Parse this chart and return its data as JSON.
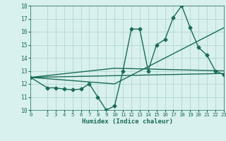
{
  "xlabel": "Humidex (Indice chaleur)",
  "bg_color": "#d8f0ee",
  "grid_color": "#b0d8d4",
  "line_color": "#1a6b5a",
  "xlim": [
    0,
    23
  ],
  "ylim": [
    10,
    18
  ],
  "xticks": [
    0,
    2,
    3,
    4,
    5,
    6,
    7,
    8,
    9,
    10,
    11,
    12,
    13,
    14,
    15,
    16,
    17,
    18,
    19,
    20,
    21,
    22,
    23
  ],
  "yticks": [
    10,
    11,
    12,
    13,
    14,
    15,
    16,
    17,
    18
  ],
  "series": [
    {
      "x": [
        0,
        2,
        3,
        4,
        5,
        6,
        7,
        8,
        9,
        10,
        11,
        12,
        13,
        14,
        15,
        16,
        17,
        18,
        19,
        20,
        21,
        22,
        23
      ],
      "y": [
        12.5,
        11.7,
        11.7,
        11.6,
        11.55,
        11.6,
        12.0,
        11.0,
        10.0,
        10.3,
        13.0,
        16.2,
        16.2,
        13.0,
        15.0,
        15.4,
        17.1,
        18.0,
        16.3,
        14.8,
        14.2,
        13.0,
        12.7
      ],
      "marker": "D",
      "markersize": 2.5,
      "linewidth": 1.0
    },
    {
      "x": [
        0,
        23
      ],
      "y": [
        12.5,
        12.8
      ],
      "marker": null,
      "linewidth": 1.0
    },
    {
      "x": [
        0,
        10,
        23
      ],
      "y": [
        12.5,
        12.0,
        16.3
      ],
      "marker": null,
      "linewidth": 1.0
    },
    {
      "x": [
        0,
        10,
        23
      ],
      "y": [
        12.5,
        13.2,
        13.0
      ],
      "marker": null,
      "linewidth": 1.0
    }
  ]
}
